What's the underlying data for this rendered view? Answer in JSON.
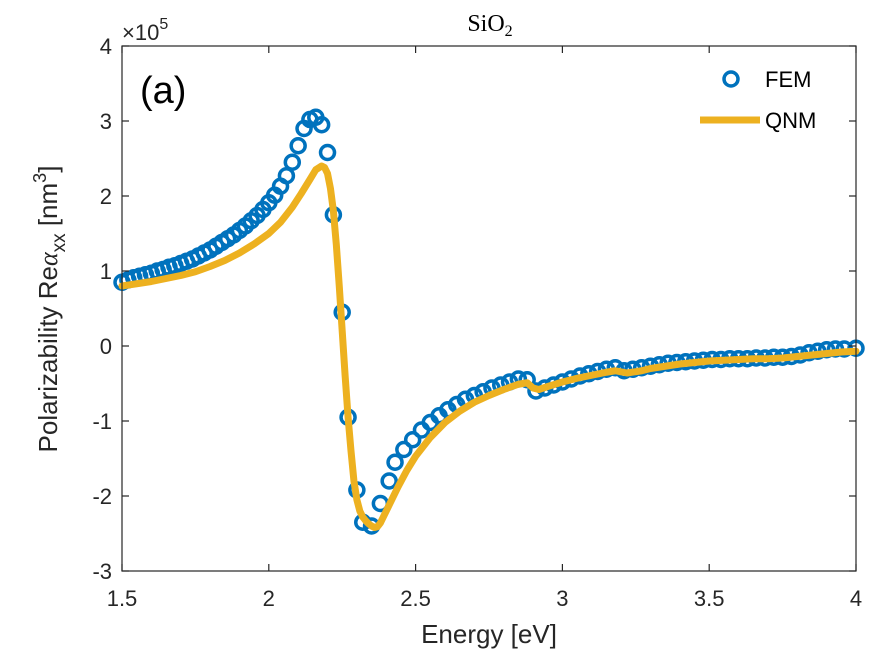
{
  "chart_data": {
    "type": "line",
    "title": "SiO",
    "title_subscript": "2",
    "panel_label": "(a)",
    "xlabel": "Energy [eV]",
    "ylabel": {
      "prefix": "Polarizability Re",
      "symbol": "α",
      "subscript": "xx",
      "unit_open": " [nm",
      "unit_sup": "3",
      "unit_close": "]"
    },
    "y_multiplier": {
      "base": "×10",
      "exponent": "5"
    },
    "xlim": [
      1.5,
      4
    ],
    "ylim": [
      -3,
      4
    ],
    "xticks": [
      1.5,
      2,
      2.5,
      3,
      3.5,
      4
    ],
    "xtick_labels": [
      "1.5",
      "2",
      "2.5",
      "3",
      "3.5",
      "4"
    ],
    "yticks": [
      -3,
      -2,
      -1,
      0,
      1,
      2,
      3,
      4
    ],
    "ytick_labels": [
      "-3",
      "-2",
      "-1",
      "0",
      "1",
      "2",
      "3",
      "4"
    ],
    "grid": false,
    "legend_position": "top-right",
    "series": [
      {
        "name": "FEM",
        "style": "markers",
        "marker": "circle",
        "color": "#0072BD",
        "x": [
          1.5,
          1.52,
          1.54,
          1.56,
          1.58,
          1.6,
          1.62,
          1.64,
          1.66,
          1.68,
          1.7,
          1.72,
          1.74,
          1.76,
          1.78,
          1.8,
          1.82,
          1.84,
          1.86,
          1.88,
          1.9,
          1.92,
          1.94,
          1.96,
          1.98,
          2.0,
          2.02,
          2.04,
          2.06,
          2.08,
          2.1,
          2.12,
          2.14,
          2.16,
          2.18,
          2.2,
          2.22,
          2.25,
          2.27,
          2.3,
          2.32,
          2.35,
          2.38,
          2.41,
          2.43,
          2.46,
          2.49,
          2.52,
          2.55,
          2.58,
          2.61,
          2.64,
          2.67,
          2.7,
          2.73,
          2.76,
          2.79,
          2.82,
          2.85,
          2.88,
          2.91,
          2.94,
          2.97,
          3.0,
          3.03,
          3.06,
          3.09,
          3.12,
          3.15,
          3.18,
          3.21,
          3.24,
          3.27,
          3.3,
          3.33,
          3.36,
          3.39,
          3.42,
          3.45,
          3.48,
          3.51,
          3.54,
          3.57,
          3.6,
          3.63,
          3.66,
          3.69,
          3.72,
          3.75,
          3.78,
          3.81,
          3.84,
          3.87,
          3.9,
          3.93,
          3.96,
          4.0
        ],
        "y": [
          0.85,
          0.88,
          0.91,
          0.93,
          0.95,
          0.97,
          1.0,
          1.02,
          1.05,
          1.07,
          1.1,
          1.13,
          1.16,
          1.2,
          1.24,
          1.28,
          1.33,
          1.38,
          1.43,
          1.48,
          1.54,
          1.6,
          1.67,
          1.74,
          1.82,
          1.91,
          2.01,
          2.13,
          2.27,
          2.45,
          2.67,
          2.9,
          3.02,
          3.05,
          2.95,
          2.58,
          1.75,
          0.45,
          -0.95,
          -1.92,
          -2.35,
          -2.4,
          -2.1,
          -1.8,
          -1.55,
          -1.38,
          -1.25,
          -1.12,
          -1.02,
          -0.93,
          -0.85,
          -0.78,
          -0.71,
          -0.66,
          -0.61,
          -0.56,
          -0.52,
          -0.48,
          -0.44,
          -0.45,
          -0.6,
          -0.56,
          -0.52,
          -0.48,
          -0.44,
          -0.4,
          -0.37,
          -0.34,
          -0.31,
          -0.29,
          -0.33,
          -0.31,
          -0.29,
          -0.27,
          -0.25,
          -0.23,
          -0.22,
          -0.21,
          -0.2,
          -0.19,
          -0.18,
          -0.18,
          -0.17,
          -0.17,
          -0.17,
          -0.16,
          -0.16,
          -0.15,
          -0.15,
          -0.14,
          -0.12,
          -0.09,
          -0.07,
          -0.05,
          -0.04,
          -0.04,
          -0.03
        ]
      },
      {
        "name": "QNM",
        "style": "line",
        "color": "#EDB120",
        "x": [
          1.5,
          1.55,
          1.6,
          1.65,
          1.7,
          1.75,
          1.8,
          1.85,
          1.9,
          1.95,
          2.0,
          2.04,
          2.08,
          2.11,
          2.14,
          2.16,
          2.18,
          2.19,
          2.2,
          2.21,
          2.22,
          2.23,
          2.24,
          2.25,
          2.26,
          2.27,
          2.28,
          2.29,
          2.3,
          2.31,
          2.32,
          2.33,
          2.34,
          2.35,
          2.36,
          2.37,
          2.38,
          2.39,
          2.41,
          2.44,
          2.47,
          2.5,
          2.55,
          2.6,
          2.65,
          2.7,
          2.75,
          2.8,
          2.85,
          2.88,
          2.9,
          2.92,
          2.95,
          3.0,
          3.05,
          3.1,
          3.15,
          3.18,
          3.22,
          3.27,
          3.3,
          3.35,
          3.4,
          3.45,
          3.5,
          3.55,
          3.6,
          3.65,
          3.7,
          3.75,
          3.8,
          3.85,
          3.9,
          3.95,
          4.0
        ],
        "y": [
          0.8,
          0.83,
          0.86,
          0.9,
          0.94,
          0.99,
          1.06,
          1.14,
          1.24,
          1.36,
          1.5,
          1.65,
          1.85,
          2.03,
          2.22,
          2.35,
          2.4,
          2.38,
          2.3,
          2.1,
          1.8,
          1.35,
          0.8,
          0.2,
          -0.4,
          -0.95,
          -1.4,
          -1.8,
          -2.05,
          -2.2,
          -2.28,
          -2.33,
          -2.37,
          -2.4,
          -2.42,
          -2.41,
          -2.36,
          -2.28,
          -2.12,
          -1.88,
          -1.66,
          -1.47,
          -1.22,
          -1.02,
          -0.87,
          -0.75,
          -0.66,
          -0.58,
          -0.51,
          -0.49,
          -0.56,
          -0.58,
          -0.54,
          -0.48,
          -0.43,
          -0.39,
          -0.35,
          -0.33,
          -0.36,
          -0.33,
          -0.3,
          -0.27,
          -0.24,
          -0.22,
          -0.2,
          -0.19,
          -0.18,
          -0.17,
          -0.17,
          -0.16,
          -0.14,
          -0.12,
          -0.1,
          -0.08,
          -0.07
        ]
      }
    ]
  }
}
